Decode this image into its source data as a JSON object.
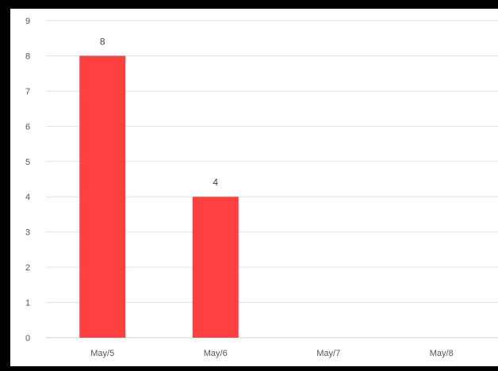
{
  "chart_data": {
    "type": "bar",
    "categories": [
      "May/5",
      "May/6",
      "May/7",
      "May/8"
    ],
    "values": [
      8,
      4,
      0,
      0
    ],
    "data_labels": [
      "8",
      "4",
      "",
      ""
    ],
    "ylim": [
      0,
      9
    ],
    "yticks": [
      "0",
      "1",
      "2",
      "3",
      "4",
      "5",
      "6",
      "7",
      "8",
      "9"
    ],
    "title": "",
    "xlabel": "",
    "ylabel": "",
    "grid": true,
    "legend": "none",
    "bar_color": "#ff4040"
  }
}
